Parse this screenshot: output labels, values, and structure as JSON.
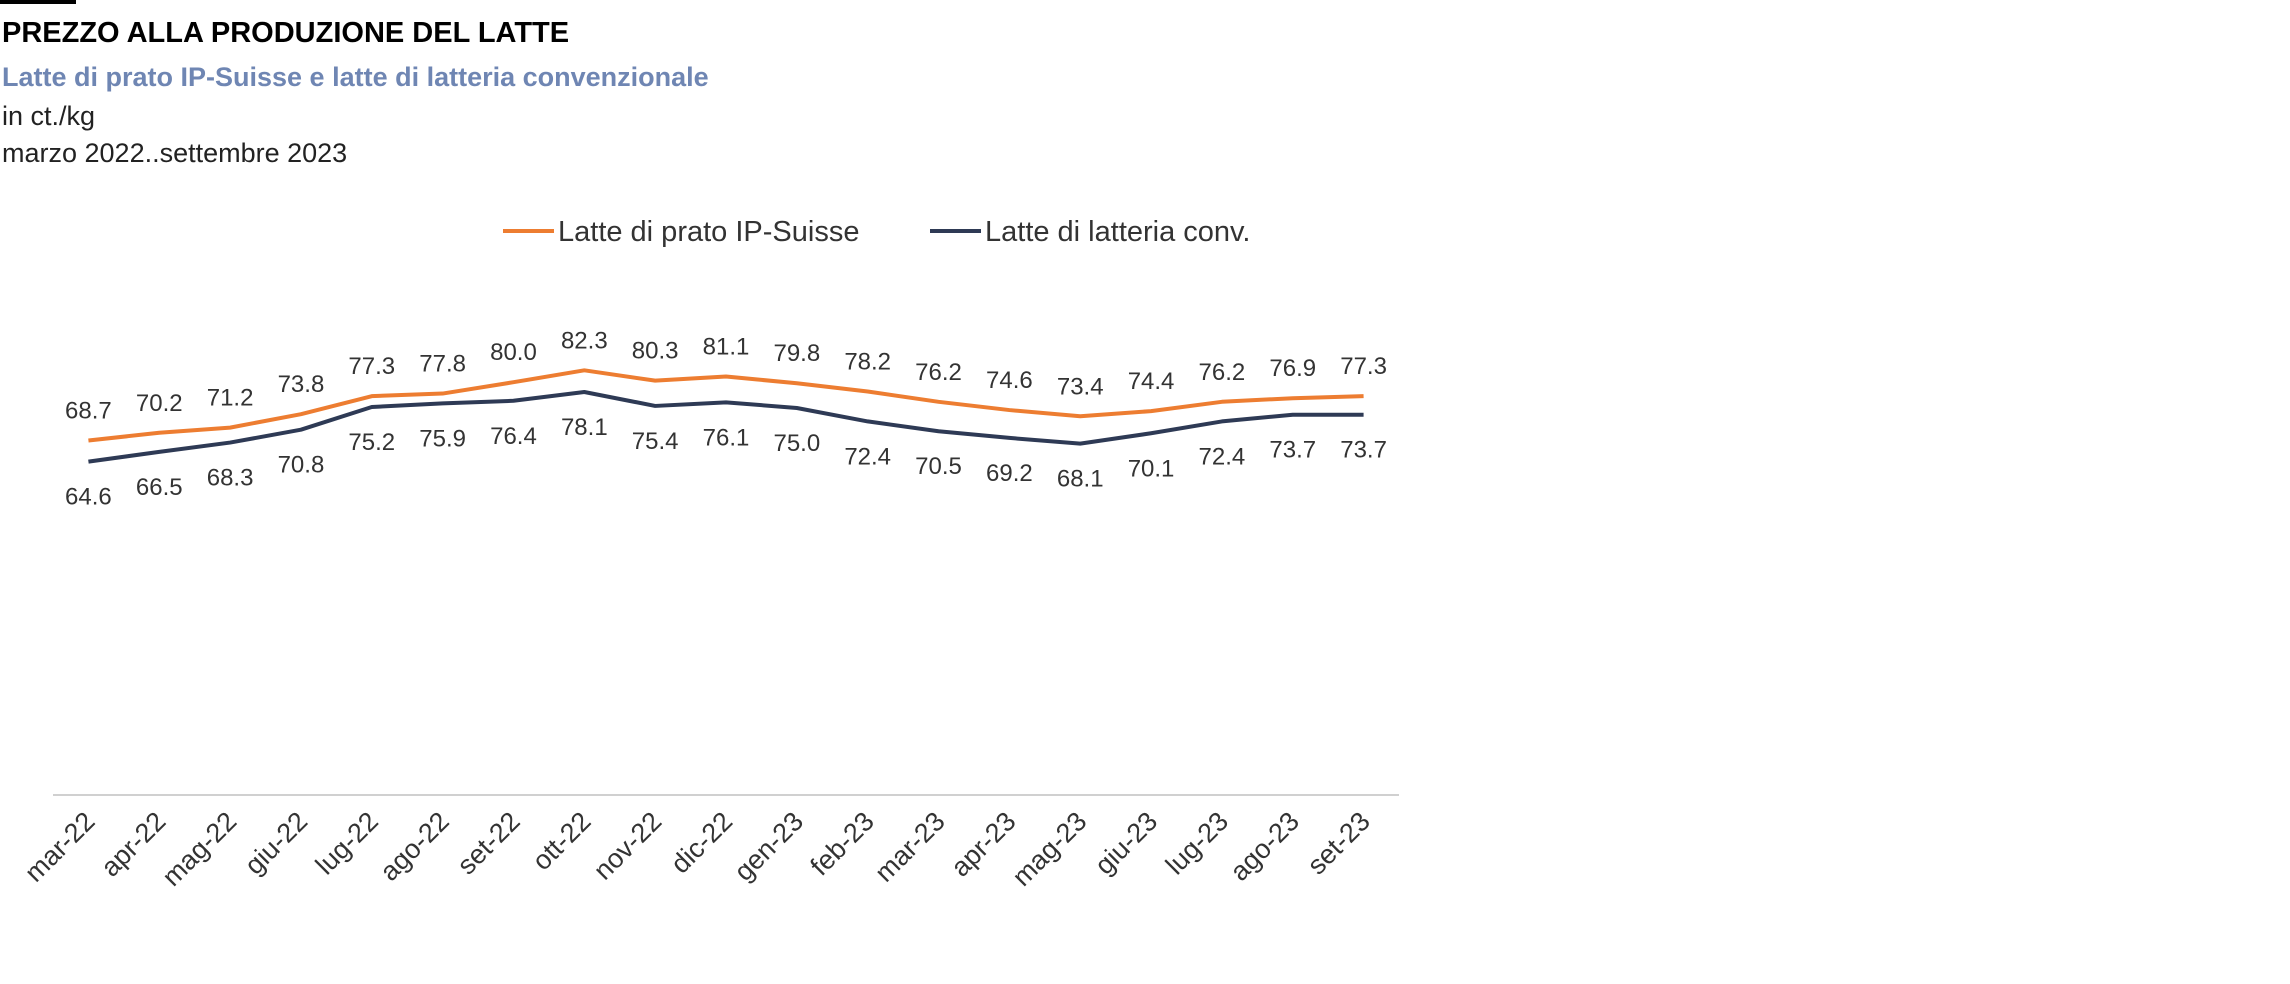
{
  "chart_data": {
    "type": "line",
    "title": "PREZZO ALLA PRODUZIONE DEL LATTE",
    "subtitle": "Latte di prato IP-Suisse e latte di latteria convenzionale",
    "unit_label": "in ct./kg",
    "period_label": "marzo 2022..settembre 2023",
    "categories": [
      "mar-22",
      "apr-22",
      "mag-22",
      "giu-22",
      "lug-22",
      "ago-22",
      "set-22",
      "ott-22",
      "nov-22",
      "dic-22",
      "gen-23",
      "feb-23",
      "mar-23",
      "apr-23",
      "mag-23",
      "giu-23",
      "lug-23",
      "ago-23",
      "set-23"
    ],
    "series": [
      {
        "name": "Latte di prato IP-Suisse",
        "color": "#ed7d31",
        "values": [
          68.7,
          70.2,
          71.2,
          73.8,
          77.3,
          77.8,
          80.0,
          82.3,
          80.3,
          81.1,
          79.8,
          78.2,
          76.2,
          74.6,
          73.4,
          74.4,
          76.2,
          76.9,
          77.3
        ],
        "value_labels": [
          "68.7",
          "70.2",
          "71.2",
          "73.8",
          "77.3",
          "77.8",
          "80.0",
          "82.3",
          "80.3",
          "81.1",
          "79.8",
          "78.2",
          "76.2",
          "74.6",
          "73.4",
          "74.4",
          "76.2",
          "76.9",
          "77.3"
        ],
        "label_position": "above"
      },
      {
        "name": "Latte di latteria conv.",
        "color": "#2e3a55",
        "values": [
          64.6,
          66.5,
          68.3,
          70.8,
          75.2,
          75.9,
          76.4,
          78.1,
          75.4,
          76.1,
          75.0,
          72.4,
          70.5,
          69.2,
          68.1,
          70.1,
          72.4,
          73.7,
          73.7
        ],
        "value_labels": [
          "64.6",
          "66.5",
          "68.3",
          "70.8",
          "75.2",
          "75.9",
          "76.4",
          "78.1",
          "75.4",
          "76.1",
          "75.0",
          "72.4",
          "70.5",
          "69.2",
          "68.1",
          "70.1",
          "72.4",
          "73.7",
          "73.7"
        ],
        "label_position": "below"
      }
    ],
    "ylim": [
      0,
      100
    ],
    "grid": false,
    "legend": "top"
  }
}
